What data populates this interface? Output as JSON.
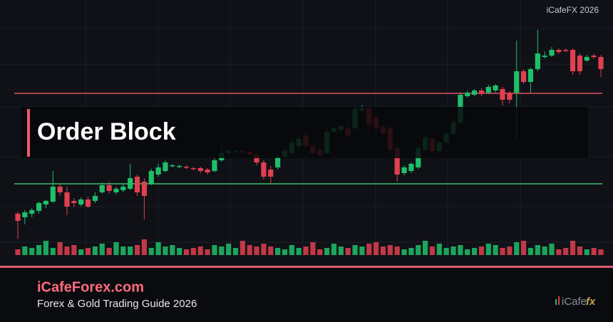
{
  "header": {
    "watermark": "iCafeFX 2026"
  },
  "chart_data": {
    "type": "candlestick",
    "ylim": [
      0,
      315
    ],
    "colors": {
      "up": "#1fbf6a",
      "down": "#e0404f"
    },
    "open": [
      45,
      40,
      45,
      49,
      58,
      62,
      83,
      75,
      63,
      58,
      65,
      63,
      75,
      85,
      75,
      78,
      80,
      97,
      90,
      87,
      100,
      105,
      112,
      111,
      111,
      109,
      109,
      107,
      105,
      120,
      130,
      132,
      133,
      132,
      128,
      117,
      107,
      110,
      125,
      130,
      140,
      155,
      140,
      135,
      130,
      160,
      163,
      165,
      165,
      190,
      193,
      180,
      167,
      165,
      137,
      102,
      105,
      110,
      135,
      150,
      133,
      145,
      157,
      173,
      210,
      212,
      218,
      215,
      218,
      220,
      215,
      215,
      245,
      230,
      248,
      265,
      267,
      275,
      275,
      275,
      267,
      260,
      267,
      265
    ],
    "high": [
      48,
      50,
      53,
      62,
      65,
      105,
      87,
      83,
      67,
      68,
      69,
      75,
      89,
      90,
      83,
      87,
      115,
      100,
      95,
      108,
      115,
      120,
      115,
      114,
      113,
      111,
      111,
      109,
      123,
      140,
      135,
      135,
      135,
      134,
      130,
      120,
      112,
      128,
      137,
      150,
      155,
      160,
      145,
      138,
      165,
      168,
      170,
      169,
      195,
      197,
      195,
      183,
      170,
      167,
      140,
      113,
      117,
      140,
      155,
      153,
      148,
      160,
      177,
      215,
      218,
      220,
      221,
      226,
      227,
      223,
      217,
      288,
      248,
      250,
      303,
      273,
      279,
      277,
      277,
      277,
      270,
      268,
      270,
      268
    ],
    "low": [
      10,
      30,
      40,
      45,
      53,
      60,
      70,
      43,
      55,
      55,
      53,
      60,
      73,
      73,
      72,
      75,
      78,
      70,
      37,
      85,
      97,
      103,
      110,
      109,
      108,
      106,
      102,
      100,
      103,
      118,
      128,
      130,
      130,
      126,
      113,
      93,
      87,
      107,
      123,
      128,
      137,
      137,
      127,
      125,
      128,
      157,
      160,
      153,
      163,
      187,
      165,
      160,
      155,
      130,
      90,
      99,
      102,
      108,
      133,
      130,
      131,
      143,
      155,
      171,
      208,
      210,
      210,
      213,
      215,
      197,
      200,
      150,
      227,
      215,
      245,
      263,
      265,
      269,
      272,
      240,
      240,
      258,
      262,
      237
    ],
    "close": [
      35,
      47,
      50,
      60,
      63,
      83,
      75,
      55,
      60,
      65,
      55,
      70,
      85,
      77,
      80,
      83,
      95,
      75,
      70,
      105,
      110,
      117,
      113,
      112,
      110,
      108,
      105,
      103,
      120,
      130,
      133,
      133,
      132,
      128,
      117,
      97,
      97,
      125,
      133,
      145,
      150,
      140,
      130,
      127,
      160,
      165,
      168,
      155,
      192,
      193,
      170,
      165,
      157,
      135,
      100,
      110,
      115,
      137,
      152,
      133,
      145,
      157,
      173,
      212,
      215,
      218,
      213,
      223,
      225,
      205,
      205,
      245,
      230,
      248,
      270,
      267,
      275,
      272,
      274,
      245,
      245,
      265,
      265,
      248
    ],
    "volume": [
      8,
      12,
      10,
      14,
      20,
      10,
      18,
      12,
      14,
      8,
      10,
      12,
      16,
      10,
      18,
      12,
      12,
      14,
      22,
      10,
      18,
      12,
      14,
      10,
      8,
      10,
      12,
      8,
      14,
      12,
      16,
      10,
      20,
      14,
      12,
      16,
      12,
      10,
      8,
      14,
      10,
      12,
      18,
      8,
      10,
      16,
      12,
      10,
      14,
      12,
      16,
      18,
      12,
      14,
      12,
      8,
      10,
      14,
      20,
      12,
      16,
      10,
      12,
      14,
      8,
      10,
      12,
      16,
      14,
      10,
      12,
      18,
      20,
      10,
      14,
      12,
      16,
      8,
      10,
      20,
      12,
      8,
      10,
      8
    ],
    "volume_lim": [
      0,
      28
    ],
    "levels": [
      {
        "value": 214,
        "color": "#e0505f"
      },
      {
        "value": 87,
        "color": "#3fbf6f"
      }
    ],
    "annotation": "Order Block"
  },
  "footer": {
    "site": "iCafeForex.com",
    "tagline": "Forex & Gold Trading Guide 2026",
    "logo": {
      "text": "iCafe",
      "accent": "fx"
    }
  }
}
